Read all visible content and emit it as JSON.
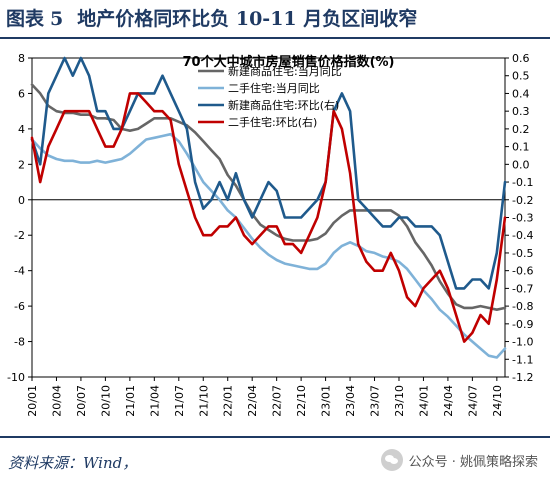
{
  "header": {
    "figure_label": "图表",
    "figure_number": "5",
    "title": "地产价格同环比负 10-11 月负区间收窄"
  },
  "source": "资料来源：Wind，",
  "watermark": {
    "icon": "wechat-icon",
    "text": "公众号 · 姚佩策略探索"
  },
  "colors": {
    "header": "#1f3a63",
    "new_yoy": "#666666",
    "used_yoy": "#7fb2d8",
    "new_mom": "#1f5a8c",
    "used_mom": "#c00000"
  },
  "chart_data": {
    "type": "line",
    "title": "70个大中城市房屋销售价格指数(%)",
    "x": [
      "20/01",
      "20/02",
      "20/03",
      "20/04",
      "20/05",
      "20/06",
      "20/07",
      "20/08",
      "20/09",
      "20/10",
      "20/11",
      "20/12",
      "21/01",
      "21/02",
      "21/03",
      "21/04",
      "21/05",
      "21/06",
      "21/07",
      "21/08",
      "21/09",
      "21/10",
      "21/11",
      "21/12",
      "22/01",
      "22/02",
      "22/03",
      "22/04",
      "22/05",
      "22/06",
      "22/07",
      "22/08",
      "22/09",
      "22/10",
      "22/11",
      "22/12",
      "23/01",
      "23/02",
      "23/03",
      "23/04",
      "23/05",
      "23/06",
      "23/07",
      "23/08",
      "23/09",
      "23/10",
      "23/11",
      "23/12",
      "24/01",
      "24/02",
      "24/03",
      "24/04",
      "24/05",
      "24/06",
      "24/07",
      "24/08",
      "24/09",
      "24/10",
      "24/11"
    ],
    "x_tick_labels": [
      "20/01",
      "20/04",
      "20/07",
      "20/10",
      "21/01",
      "21/04",
      "21/07",
      "21/10",
      "22/01",
      "22/04",
      "22/07",
      "22/10",
      "23/01",
      "23/04",
      "23/07",
      "23/10",
      "24/01",
      "24/04",
      "24/07",
      "24/10"
    ],
    "left_axis": {
      "min": -10,
      "max": 8,
      "ticks": [
        8,
        6,
        4,
        2,
        0,
        -2,
        -4,
        -6,
        -8,
        -10
      ]
    },
    "right_axis": {
      "min": -1.2,
      "max": 0.6,
      "ticks": [
        0.6,
        0.5,
        0.4,
        0.3,
        0.2,
        0.1,
        0.0,
        -0.1,
        -0.2,
        -0.3,
        -0.4,
        -0.5,
        -0.6,
        -0.7,
        -0.8,
        -0.9,
        -1.0,
        -1.1,
        -1.2
      ]
    },
    "legend_position": "top-right",
    "grid": false,
    "series": [
      {
        "name": "新建商品住宅:当月同比",
        "axis": "left",
        "color": "#666666",
        "values": [
          6.5,
          6.0,
          5.3,
          5.0,
          4.9,
          4.9,
          4.8,
          4.8,
          4.6,
          4.6,
          4.5,
          4.0,
          3.9,
          4.0,
          4.3,
          4.6,
          4.6,
          4.6,
          4.4,
          4.2,
          3.8,
          3.3,
          2.8,
          2.3,
          1.4,
          0.8,
          0.0,
          -0.8,
          -1.4,
          -1.7,
          -2.0,
          -2.2,
          -2.3,
          -2.3,
          -2.3,
          -2.2,
          -1.9,
          -1.3,
          -0.9,
          -0.6,
          -0.6,
          -0.6,
          -0.6,
          -0.6,
          -0.6,
          -0.9,
          -1.5,
          -2.4,
          -3.0,
          -3.7,
          -4.6,
          -5.3,
          -5.9,
          -6.1,
          -6.1,
          -6.0,
          -6.1,
          -6.2,
          -6.1
        ]
      },
      {
        "name": "二手住宅:当月同比",
        "axis": "left",
        "color": "#7fb2d8",
        "values": [
          3.4,
          2.9,
          2.5,
          2.3,
          2.2,
          2.2,
          2.1,
          2.1,
          2.2,
          2.1,
          2.2,
          2.3,
          2.6,
          3.0,
          3.4,
          3.5,
          3.6,
          3.7,
          3.3,
          2.6,
          1.8,
          1.0,
          0.5,
          0.0,
          -0.6,
          -1.0,
          -1.6,
          -2.2,
          -2.7,
          -3.1,
          -3.4,
          -3.6,
          -3.7,
          -3.8,
          -3.9,
          -3.9,
          -3.6,
          -3.0,
          -2.6,
          -2.4,
          -2.6,
          -2.9,
          -3.0,
          -3.2,
          -3.3,
          -3.5,
          -3.9,
          -4.5,
          -5.1,
          -5.6,
          -6.2,
          -6.6,
          -7.1,
          -7.6,
          -8.0,
          -8.4,
          -8.8,
          -8.9,
          -8.4
        ]
      },
      {
        "name": "新建商品住宅:环比(右)",
        "axis": "right",
        "color": "#1f5a8c",
        "values": [
          0.14,
          0.0,
          0.4,
          0.5,
          0.6,
          0.5,
          0.6,
          0.5,
          0.3,
          0.3,
          0.2,
          0.2,
          0.3,
          0.4,
          0.4,
          0.4,
          0.5,
          0.4,
          0.3,
          0.2,
          -0.1,
          -0.25,
          -0.2,
          -0.1,
          -0.2,
          -0.05,
          -0.2,
          -0.3,
          -0.2,
          -0.1,
          -0.15,
          -0.3,
          -0.3,
          -0.3,
          -0.25,
          -0.2,
          -0.1,
          0.3,
          0.4,
          0.3,
          -0.2,
          -0.25,
          -0.3,
          -0.35,
          -0.35,
          -0.3,
          -0.3,
          -0.35,
          -0.35,
          -0.35,
          -0.4,
          -0.55,
          -0.7,
          -0.7,
          -0.65,
          -0.65,
          -0.7,
          -0.5,
          -0.1
        ]
      },
      {
        "name": "二手住宅:环比(右)",
        "axis": "right",
        "color": "#c00000",
        "values": [
          0.15,
          -0.1,
          0.1,
          0.2,
          0.3,
          0.3,
          0.3,
          0.3,
          0.2,
          0.1,
          0.1,
          0.2,
          0.4,
          0.4,
          0.35,
          0.3,
          0.3,
          0.25,
          0.0,
          -0.15,
          -0.3,
          -0.4,
          -0.4,
          -0.35,
          -0.35,
          -0.3,
          -0.4,
          -0.45,
          -0.4,
          -0.35,
          -0.35,
          -0.45,
          -0.45,
          -0.5,
          -0.4,
          -0.3,
          -0.1,
          0.3,
          0.2,
          -0.05,
          -0.45,
          -0.55,
          -0.6,
          -0.6,
          -0.5,
          -0.6,
          -0.75,
          -0.8,
          -0.7,
          -0.65,
          -0.6,
          -0.7,
          -0.85,
          -1.0,
          -0.95,
          -0.85,
          -0.9,
          -0.65,
          -0.3
        ]
      }
    ]
  }
}
